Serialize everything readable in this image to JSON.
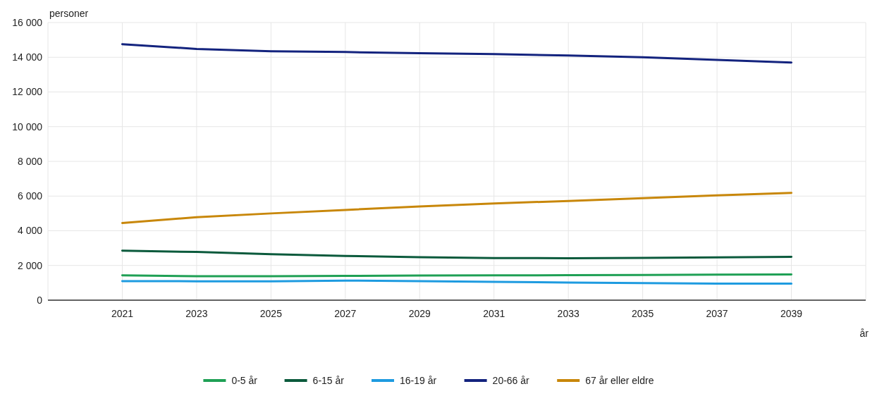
{
  "chart_data": {
    "type": "line",
    "xlabel": "år",
    "ylabel": "personer",
    "x": [
      2021,
      2023,
      2025,
      2027,
      2029,
      2031,
      2033,
      2035,
      2037,
      2039
    ],
    "xlim": [
      2019,
      2041
    ],
    "xticks": [
      2021,
      2023,
      2025,
      2027,
      2029,
      2031,
      2033,
      2035,
      2037,
      2039
    ],
    "ylim": [
      0,
      16000
    ],
    "yticks": [
      0,
      {
        "value": 2000,
        "label": "2 000"
      },
      {
        "value": 4000,
        "label": "4 000"
      },
      {
        "value": 6000,
        "label": "6 000"
      },
      {
        "value": 8000,
        "label": "8 000"
      },
      {
        "value": 10000,
        "label": "10 000"
      },
      {
        "value": 12000,
        "label": "12 000"
      },
      {
        "value": 14000,
        "label": "14 000"
      },
      {
        "value": 16000,
        "label": "16 000"
      }
    ],
    "grid": true,
    "legend": "bottom",
    "marker": "none",
    "line_style": "solid",
    "series": [
      {
        "name": "0-5 år",
        "color": "#1fa055",
        "values": [
          1430,
          1380,
          1380,
          1400,
          1420,
          1430,
          1440,
          1450,
          1470,
          1480
        ]
      },
      {
        "name": "6-15 år",
        "color": "#0b5a3c",
        "values": [
          2850,
          2780,
          2650,
          2550,
          2480,
          2430,
          2420,
          2440,
          2470,
          2500
        ]
      },
      {
        "name": "16-19 år",
        "color": "#1e9be0",
        "values": [
          1100,
          1090,
          1090,
          1130,
          1100,
          1060,
          1020,
          980,
          950,
          950
        ]
      },
      {
        "name": "20-66 år",
        "color": "#13237e",
        "values": [
          14750,
          14480,
          14350,
          14300,
          14230,
          14180,
          14100,
          14000,
          13850,
          13700
        ]
      },
      {
        "name": "67 år eller eldre",
        "color": "#c8870a",
        "values": [
          4450,
          4780,
          5000,
          5200,
          5400,
          5570,
          5720,
          5880,
          6040,
          6180
        ]
      }
    ]
  }
}
